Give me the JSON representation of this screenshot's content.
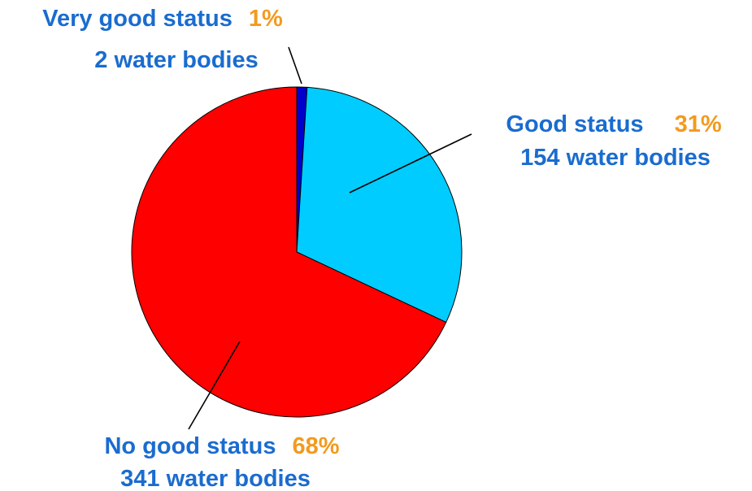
{
  "chart_data": {
    "type": "pie",
    "categories": [
      "Very good status",
      "Good status",
      "No good status"
    ],
    "values": [
      1,
      31,
      68
    ],
    "value_labels": [
      "1%",
      "31%",
      "68%"
    ],
    "count_labels": [
      "2 water bodies",
      "154 water bodies",
      "341 water bodies"
    ],
    "colors": [
      "#0000cc",
      "#00ccff",
      "#ff0000"
    ]
  }
}
